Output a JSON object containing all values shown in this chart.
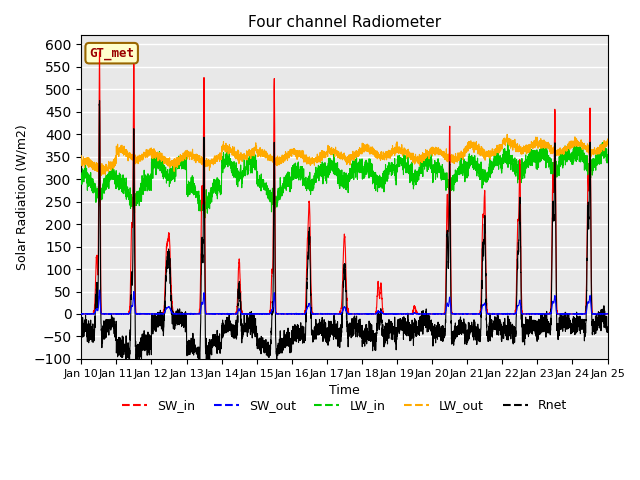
{
  "title": "Four channel Radiometer",
  "xlabel": "Time",
  "ylabel": "Solar Radiation (W/m2)",
  "annotation_text": "GT_met",
  "annotation_bg": "#ffffcc",
  "annotation_border": "#996600",
  "annotation_text_color": "#990000",
  "ylim": [
    -100,
    620
  ],
  "yticks": [
    -100,
    -50,
    0,
    50,
    100,
    150,
    200,
    250,
    300,
    350,
    400,
    450,
    500,
    550,
    600
  ],
  "x_tick_labels": [
    "Jan 10",
    "Jan 11",
    "Jan 12",
    "Jan 13",
    "Jan 14",
    "Jan 15",
    "Jan 16",
    "Jan 17",
    "Jan 18",
    "Jan 19",
    "Jan 20",
    "Jan 21",
    "Jan 22",
    "Jan 23",
    "Jan 24",
    "Jan 25"
  ],
  "n_days": 15,
  "n_points_per_day": 288,
  "colors": {
    "SW_in": "#ff0000",
    "SW_out": "#0000ff",
    "LW_in": "#00cc00",
    "LW_out": "#ffaa00",
    "Rnet": "#000000"
  },
  "line_widths": {
    "SW_in": 0.8,
    "SW_out": 0.8,
    "LW_in": 0.8,
    "LW_out": 0.8,
    "Rnet": 0.8
  },
  "background_color": "#e8e8e8",
  "grid_color": "#ffffff",
  "figsize": [
    6.4,
    4.8
  ],
  "dpi": 100,
  "legend_entries": [
    "SW_in",
    "SW_out",
    "LW_in",
    "LW_out",
    "Rnet"
  ]
}
